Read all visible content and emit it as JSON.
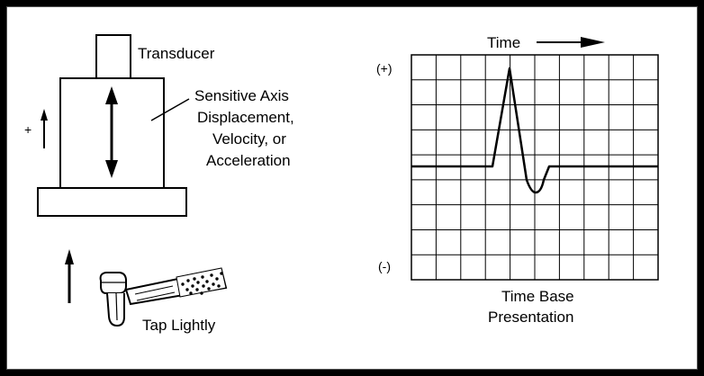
{
  "left": {
    "transducer_label": "Transducer",
    "axis_label_lines": [
      "Sensitive Axis",
      "Displacement,",
      "Velocity, or",
      "Acceleration"
    ],
    "plus_sign": "+",
    "tap_label": "Tap Lightly"
  },
  "right": {
    "time_label": "Time",
    "plus_label": "(+)",
    "minus_label": "(-)",
    "caption_lines": [
      "Time Base",
      "Presentation"
    ]
  }
}
